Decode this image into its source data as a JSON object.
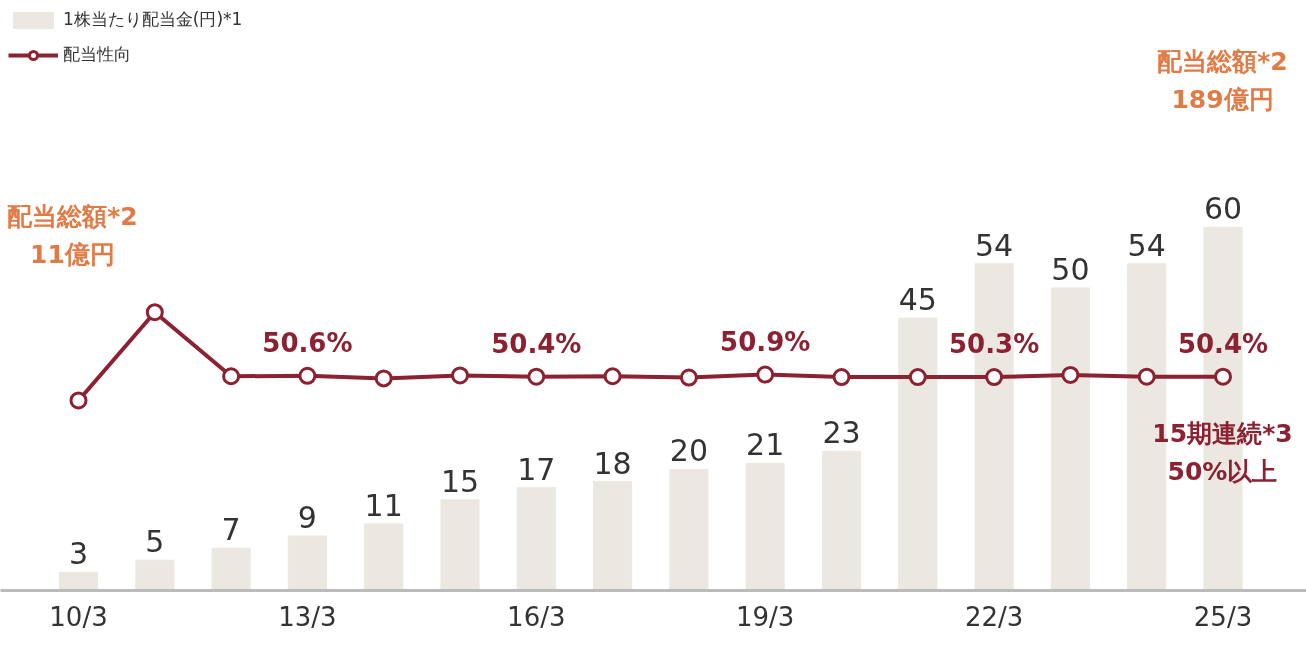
{
  "chart_data": {
    "type": "bar",
    "categories": [
      "10/3",
      null,
      null,
      "13/3",
      null,
      null,
      "16/3",
      null,
      null,
      "19/3",
      null,
      null,
      "22/3",
      null,
      null,
      "25/3"
    ],
    "series": [
      {
        "name": "1株当たり配当金(円)*1",
        "color": "#ebe8e1",
        "values": [
          3,
          5,
          7,
          9,
          11,
          15,
          17,
          18,
          20,
          21,
          23,
          45,
          54,
          50,
          54,
          60
        ],
        "value_labels": [
          "3",
          "5",
          "7",
          "9",
          "11",
          "15",
          "17",
          "18",
          "20",
          "21",
          "23",
          "45",
          "54",
          "50",
          "54",
          "60"
        ]
      },
      {
        "name": "配当性向",
        "type": "line",
        "axis": "y2",
        "color": "#8b2131",
        "marker": "circle",
        "values": [
          44.8,
          65.6,
          50.5,
          50.6,
          50.0,
          50.7,
          50.4,
          50.5,
          50.2,
          50.9,
          50.3,
          50.3,
          50.3,
          50.8,
          50.4,
          50.4
        ],
        "value_labels": [
          null,
          null,
          null,
          "50.6%",
          null,
          null,
          "50.4%",
          null,
          null,
          "50.9%",
          null,
          null,
          "50.3%",
          null,
          null,
          "50.4%"
        ]
      }
    ],
    "tick_labels": "x",
    "grid": false,
    "legend": "top left",
    "annotations": [
      "配当総額*2\n11億円",
      "配当総額*2\n189億円",
      "15期連続*3\n50%以上"
    ]
  }
}
